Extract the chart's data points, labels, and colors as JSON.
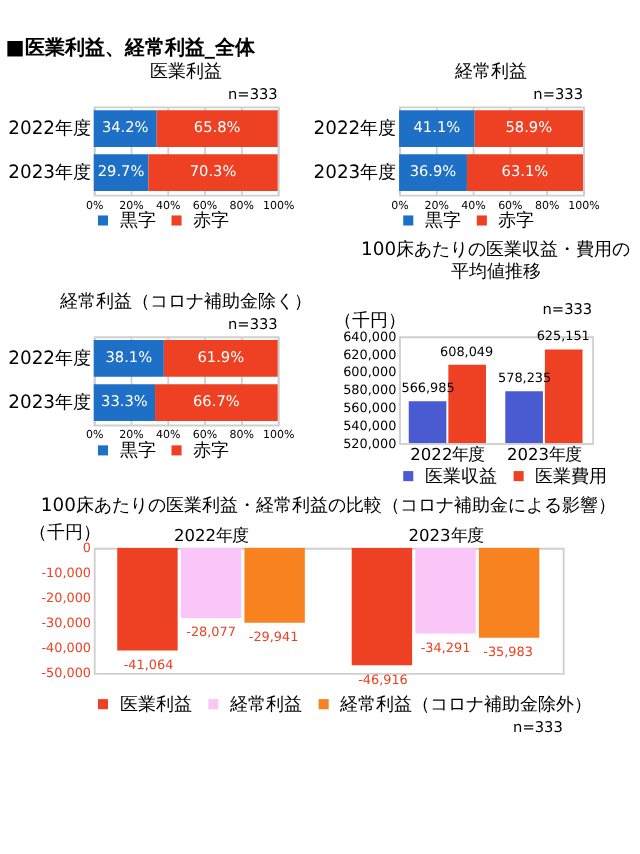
{
  "chart_data": [
    {
      "type": "bar",
      "orientation": "horizontal",
      "stacked": true,
      "title": "医業利益",
      "annotations": [
        "■医業利益、経常利益_全体",
        "n=333"
      ],
      "categories": [
        "2022年度",
        "2023年度"
      ],
      "series": [
        {
          "name": "黒字",
          "color": "#1e6fc6",
          "values": [
            34.2,
            29.7
          ],
          "value_labels": [
            "34.2%",
            "29.7%"
          ]
        },
        {
          "name": "赤字",
          "color": "#ee4123",
          "values": [
            65.8,
            70.3
          ],
          "value_labels": [
            "65.8%",
            "70.3%"
          ]
        }
      ],
      "xlim": [
        0,
        100
      ],
      "xticks": [
        {
          "value": 0,
          "label": "0%"
        },
        {
          "value": 20,
          "label": "20%"
        },
        {
          "value": 40,
          "label": "40%"
        },
        {
          "value": 60,
          "label": "60%"
        },
        {
          "value": 80,
          "label": "80%"
        },
        {
          "value": 100,
          "label": "100%"
        }
      ],
      "grid": "x",
      "legend": "bottom"
    },
    {
      "type": "bar",
      "orientation": "horizontal",
      "stacked": true,
      "title": "経常利益",
      "annotations": [
        "n=333"
      ],
      "categories": [
        "2022年度",
        "2023年度"
      ],
      "series": [
        {
          "name": "黒字",
          "color": "#1e6fc6",
          "values": [
            41.1,
            36.9
          ],
          "value_labels": [
            "41.1%",
            "36.9%"
          ]
        },
        {
          "name": "赤字",
          "color": "#ee4123",
          "values": [
            58.9,
            63.1
          ],
          "value_labels": [
            "58.9%",
            "63.1%"
          ]
        }
      ],
      "xlim": [
        0,
        100
      ],
      "xticks": [
        {
          "value": 0,
          "label": "0%"
        },
        {
          "value": 20,
          "label": "20%"
        },
        {
          "value": 40,
          "label": "40%"
        },
        {
          "value": 60,
          "label": "60%"
        },
        {
          "value": 80,
          "label": "80%"
        },
        {
          "value": 100,
          "label": "100%"
        }
      ],
      "grid": "x",
      "legend": "bottom"
    },
    {
      "type": "bar",
      "orientation": "horizontal",
      "stacked": true,
      "title": "経常利益（コロナ補助金除く）",
      "annotations": [
        "n=333"
      ],
      "categories": [
        "2022年度",
        "2023年度"
      ],
      "series": [
        {
          "name": "黒字",
          "color": "#1e6fc6",
          "values": [
            38.1,
            33.3
          ],
          "value_labels": [
            "38.1%",
            "33.3%"
          ]
        },
        {
          "name": "赤字",
          "color": "#ee4123",
          "values": [
            61.9,
            66.7
          ],
          "value_labels": [
            "61.9%",
            "66.7%"
          ]
        }
      ],
      "xlim": [
        0,
        100
      ],
      "xticks": [
        {
          "value": 0,
          "label": "0%"
        },
        {
          "value": 20,
          "label": "20%"
        },
        {
          "value": 40,
          "label": "40%"
        },
        {
          "value": 60,
          "label": "60%"
        },
        {
          "value": 80,
          "label": "80%"
        },
        {
          "value": 100,
          "label": "100%"
        }
      ],
      "grid": "x",
      "legend": "bottom"
    },
    {
      "type": "bar",
      "title": "100床あたりの医業収益・費用の平均値推移",
      "ylabel": "（千円）",
      "annotations": [
        "n=333"
      ],
      "categories": [
        "2022年度",
        "2023年度"
      ],
      "series": [
        {
          "name": "医業収益",
          "color": "#4a5bd1",
          "values": [
            566985,
            578235
          ],
          "value_labels": [
            "566,985",
            "578,235"
          ]
        },
        {
          "name": "医業費用",
          "color": "#ee4123",
          "values": [
            608049,
            625151
          ],
          "value_labels": [
            "608,049",
            "625,151"
          ]
        }
      ],
      "ylim": [
        520000,
        640000
      ],
      "yticks": [
        {
          "value": 520000,
          "label": "520,000"
        },
        {
          "value": 540000,
          "label": "540,000"
        },
        {
          "value": 560000,
          "label": "560,000"
        },
        {
          "value": 580000,
          "label": "580,000"
        },
        {
          "value": 600000,
          "label": "600,000"
        },
        {
          "value": 620000,
          "label": "620,000"
        },
        {
          "value": 640000,
          "label": "640,000"
        }
      ],
      "legend": "bottom"
    },
    {
      "type": "bar",
      "title": "100床あたりの医業利益・経常利益の比較（コロナ補助金による影響）",
      "ylabel": "（千円）",
      "annotations": [
        "n=333"
      ],
      "categories": [
        "2022年度",
        "2023年度"
      ],
      "series": [
        {
          "name": "医業利益",
          "color": "#ee4123",
          "values": [
            -41064,
            -46916
          ],
          "value_labels": [
            "-41,064",
            "-46,916"
          ]
        },
        {
          "name": "経常利益",
          "color": "#f9c6f7",
          "values": [
            -28077,
            -34291
          ],
          "value_labels": [
            "-28,077",
            "-34,291"
          ]
        },
        {
          "name": "経常利益（コロナ補助金除外）",
          "color": "#f8821f",
          "values": [
            -29941,
            -35983
          ],
          "value_labels": [
            "-29,941",
            "-35,983"
          ]
        }
      ],
      "ylim": [
        -50000,
        0
      ],
      "yticks": [
        {
          "value": -50000,
          "label": "-50,000"
        },
        {
          "value": -40000,
          "label": "-40,000"
        },
        {
          "value": -30000,
          "label": "-30,000"
        },
        {
          "value": -20000,
          "label": "-20,000"
        },
        {
          "value": -10000,
          "label": "-10,000"
        },
        0
      ],
      "legend": "bottom"
    }
  ]
}
